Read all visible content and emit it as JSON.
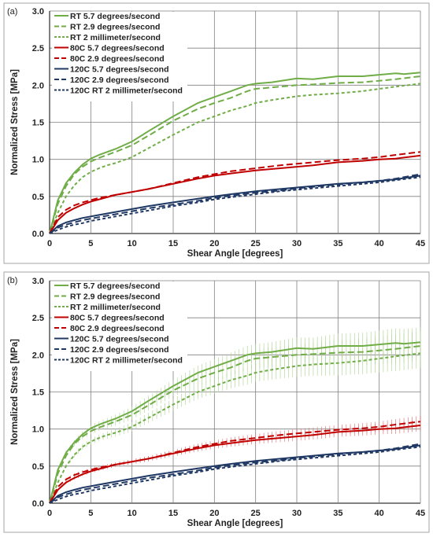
{
  "chart_data": [
    {
      "type": "line",
      "panel_label": "(a)",
      "xlabel": "Shear Angle [degrees]",
      "ylabel": "Normalized Stress [MPa]",
      "xlim": [
        0,
        45
      ],
      "ylim": [
        0,
        3.0
      ],
      "x_ticks": [
        "0",
        "5",
        "10",
        "15",
        "20",
        "25",
        "30",
        "35",
        "40",
        "45"
      ],
      "y_ticks": [
        "0.0",
        "0.5",
        "1.0",
        "1.5",
        "2.0",
        "2.5",
        "3.0"
      ],
      "grid": true,
      "legend_position": "top-left",
      "series": [
        {
          "name": "RT 5.7 degrees/second",
          "color": "#70ad47",
          "dash": "solid",
          "x": [
            0,
            1,
            2,
            3,
            4,
            5,
            6,
            7,
            8,
            10,
            12,
            15,
            18,
            20,
            22,
            24,
            25,
            27,
            30,
            32,
            35,
            38,
            40,
            42,
            43,
            45
          ],
          "y": [
            0.0,
            0.45,
            0.68,
            0.82,
            0.93,
            1.01,
            1.06,
            1.1,
            1.14,
            1.24,
            1.38,
            1.58,
            1.76,
            1.84,
            1.92,
            2.0,
            2.02,
            2.04,
            2.09,
            2.08,
            2.12,
            2.12,
            2.14,
            2.16,
            2.15,
            2.17
          ]
        },
        {
          "name": "RT 2.9 degrees/second",
          "color": "#70ad47",
          "dash": "dash",
          "x": [
            0,
            1,
            2,
            3,
            4,
            5,
            6,
            7,
            8,
            10,
            12,
            15,
            18,
            20,
            22,
            24,
            25,
            27,
            30,
            32,
            35,
            38,
            40,
            42,
            45
          ],
          "y": [
            0.0,
            0.4,
            0.64,
            0.8,
            0.9,
            0.97,
            1.02,
            1.06,
            1.1,
            1.19,
            1.32,
            1.52,
            1.68,
            1.76,
            1.83,
            1.92,
            1.95,
            1.97,
            2.0,
            2.01,
            2.03,
            2.04,
            2.06,
            2.08,
            2.12
          ]
        },
        {
          "name": "RT 2 millimeter/second",
          "color": "#70ad47",
          "dash": "shortdash",
          "x": [
            0,
            1,
            2,
            3,
            4,
            5,
            6,
            7,
            8,
            10,
            12,
            15,
            18,
            20,
            22,
            24,
            25,
            27,
            30,
            32,
            35,
            38,
            40,
            42,
            45
          ],
          "y": [
            0.0,
            0.28,
            0.5,
            0.65,
            0.76,
            0.83,
            0.88,
            0.92,
            0.95,
            1.03,
            1.15,
            1.33,
            1.5,
            1.58,
            1.66,
            1.72,
            1.76,
            1.8,
            1.85,
            1.87,
            1.89,
            1.92,
            1.95,
            1.98,
            2.02
          ]
        },
        {
          "name": "80C 5.7 degrees/second",
          "color": "#c00000",
          "dash": "solid",
          "x": [
            0,
            1,
            2,
            3,
            4,
            5,
            6,
            7,
            8,
            10,
            12,
            15,
            18,
            20,
            22,
            25,
            28,
            30,
            32,
            35,
            38,
            40,
            42,
            45
          ],
          "y": [
            0.0,
            0.18,
            0.28,
            0.34,
            0.39,
            0.43,
            0.46,
            0.49,
            0.52,
            0.56,
            0.6,
            0.67,
            0.74,
            0.78,
            0.81,
            0.85,
            0.88,
            0.9,
            0.92,
            0.96,
            0.98,
            1.0,
            1.01,
            1.05
          ]
        },
        {
          "name": "80C 2.9 degrees/second",
          "color": "#c00000",
          "dash": "dash",
          "x": [
            0,
            1,
            2,
            3,
            4,
            5,
            6,
            7,
            8,
            10,
            12,
            15,
            18,
            20,
            22,
            25,
            28,
            30,
            32,
            35,
            38,
            40,
            42,
            45
          ],
          "y": [
            0.0,
            0.22,
            0.32,
            0.38,
            0.42,
            0.45,
            0.48,
            0.5,
            0.52,
            0.56,
            0.6,
            0.68,
            0.76,
            0.8,
            0.84,
            0.88,
            0.92,
            0.94,
            0.96,
            0.99,
            1.01,
            1.03,
            1.06,
            1.1
          ]
        },
        {
          "name": "120C 5.7 degrees/second",
          "color": "#1f3864",
          "dash": "solid",
          "x": [
            0,
            1,
            2,
            3,
            4,
            5,
            6,
            8,
            10,
            12,
            15,
            18,
            20,
            22,
            25,
            28,
            30,
            32,
            35,
            38,
            40,
            42,
            45
          ],
          "y": [
            0.0,
            0.1,
            0.15,
            0.18,
            0.21,
            0.23,
            0.25,
            0.29,
            0.33,
            0.37,
            0.42,
            0.47,
            0.5,
            0.53,
            0.57,
            0.6,
            0.62,
            0.64,
            0.67,
            0.69,
            0.71,
            0.73,
            0.78
          ]
        },
        {
          "name": "120C 2.9 degrees/second",
          "color": "#1f3864",
          "dash": "dash",
          "x": [
            0,
            1,
            2,
            3,
            4,
            5,
            6,
            8,
            10,
            12,
            15,
            18,
            20,
            22,
            25,
            28,
            30,
            32,
            35,
            38,
            40,
            42,
            45
          ],
          "y": [
            0.0,
            0.08,
            0.12,
            0.15,
            0.18,
            0.2,
            0.22,
            0.26,
            0.3,
            0.34,
            0.39,
            0.44,
            0.48,
            0.51,
            0.55,
            0.58,
            0.61,
            0.63,
            0.66,
            0.69,
            0.71,
            0.74,
            0.8
          ]
        },
        {
          "name": "120C RT 2 millimeter/second",
          "color": "#1f3864",
          "dash": "shortdash",
          "x": [
            0,
            1,
            2,
            3,
            4,
            5,
            6,
            8,
            10,
            12,
            15,
            18,
            20,
            22,
            25,
            28,
            30,
            32,
            35,
            38,
            40,
            42,
            45
          ],
          "y": [
            0.0,
            0.05,
            0.09,
            0.12,
            0.14,
            0.17,
            0.19,
            0.23,
            0.27,
            0.31,
            0.37,
            0.42,
            0.46,
            0.49,
            0.53,
            0.57,
            0.59,
            0.61,
            0.64,
            0.67,
            0.69,
            0.72,
            0.76
          ]
        }
      ]
    },
    {
      "type": "line",
      "panel_label": "(b)",
      "xlabel": "Shear Angle [degrees]",
      "ylabel": "Normalized Stress [MPa]",
      "xlim": [
        0,
        45
      ],
      "ylim": [
        0,
        3.0
      ],
      "x_ticks": [
        "0",
        "5",
        "10",
        "15",
        "20",
        "25",
        "30",
        "35",
        "40",
        "45"
      ],
      "y_ticks": [
        "0.0",
        "0.5",
        "1.0",
        "1.5",
        "2.0",
        "2.5",
        "3.0"
      ],
      "grid": true,
      "error_bars": true,
      "legend_position": "top-left",
      "series": [
        {
          "name": "RT 5.7 degrees/second",
          "color": "#70ad47",
          "dash": "solid",
          "x": [
            0,
            1,
            2,
            3,
            4,
            5,
            6,
            7,
            8,
            10,
            12,
            15,
            18,
            20,
            22,
            24,
            25,
            27,
            30,
            32,
            35,
            38,
            40,
            42,
            43,
            45
          ],
          "y": [
            0.0,
            0.45,
            0.68,
            0.82,
            0.93,
            1.01,
            1.06,
            1.1,
            1.14,
            1.24,
            1.38,
            1.58,
            1.76,
            1.84,
            1.92,
            2.0,
            2.02,
            2.04,
            2.09,
            2.08,
            2.12,
            2.12,
            2.14,
            2.16,
            2.15,
            2.17
          ]
        },
        {
          "name": "RT 2.9 degrees/second",
          "color": "#70ad47",
          "dash": "dash",
          "x": [
            0,
            1,
            2,
            3,
            4,
            5,
            6,
            7,
            8,
            10,
            12,
            15,
            18,
            20,
            22,
            24,
            25,
            27,
            30,
            32,
            35,
            38,
            40,
            42,
            45
          ],
          "y": [
            0.0,
            0.4,
            0.64,
            0.8,
            0.9,
            0.97,
            1.02,
            1.06,
            1.1,
            1.19,
            1.32,
            1.52,
            1.68,
            1.76,
            1.83,
            1.92,
            1.95,
            1.97,
            2.0,
            2.01,
            2.03,
            2.04,
            2.06,
            2.08,
            2.12
          ]
        },
        {
          "name": "RT 2 millimeter/second",
          "color": "#70ad47",
          "dash": "shortdash",
          "x": [
            0,
            1,
            2,
            3,
            4,
            5,
            6,
            7,
            8,
            10,
            12,
            15,
            18,
            20,
            22,
            24,
            25,
            27,
            30,
            32,
            35,
            38,
            40,
            42,
            45
          ],
          "y": [
            0.0,
            0.28,
            0.5,
            0.65,
            0.76,
            0.83,
            0.88,
            0.92,
            0.95,
            1.03,
            1.15,
            1.33,
            1.5,
            1.58,
            1.66,
            1.72,
            1.76,
            1.8,
            1.85,
            1.87,
            1.89,
            1.92,
            1.95,
            1.98,
            2.02
          ]
        },
        {
          "name": "80C 5.7 degrees/second",
          "color": "#c00000",
          "dash": "solid",
          "x": [
            0,
            1,
            2,
            3,
            4,
            5,
            6,
            7,
            8,
            10,
            12,
            15,
            18,
            20,
            22,
            25,
            28,
            30,
            32,
            35,
            38,
            40,
            42,
            45
          ],
          "y": [
            0.0,
            0.18,
            0.28,
            0.34,
            0.39,
            0.43,
            0.46,
            0.49,
            0.52,
            0.56,
            0.6,
            0.67,
            0.74,
            0.78,
            0.81,
            0.85,
            0.88,
            0.9,
            0.92,
            0.96,
            0.98,
            1.0,
            1.01,
            1.05
          ]
        },
        {
          "name": "80C 2.9 degrees/second",
          "color": "#c00000",
          "dash": "dash",
          "x": [
            0,
            1,
            2,
            3,
            4,
            5,
            6,
            7,
            8,
            10,
            12,
            15,
            18,
            20,
            22,
            25,
            28,
            30,
            32,
            35,
            38,
            40,
            42,
            45
          ],
          "y": [
            0.0,
            0.22,
            0.32,
            0.38,
            0.42,
            0.45,
            0.48,
            0.5,
            0.52,
            0.56,
            0.6,
            0.68,
            0.76,
            0.8,
            0.84,
            0.88,
            0.92,
            0.94,
            0.96,
            0.99,
            1.01,
            1.03,
            1.06,
            1.1
          ]
        },
        {
          "name": "120C 5.7 degrees/second",
          "color": "#1f3864",
          "dash": "solid",
          "x": [
            0,
            1,
            2,
            3,
            4,
            5,
            6,
            8,
            10,
            12,
            15,
            18,
            20,
            22,
            25,
            28,
            30,
            32,
            35,
            38,
            40,
            42,
            45
          ],
          "y": [
            0.0,
            0.1,
            0.15,
            0.18,
            0.21,
            0.23,
            0.25,
            0.29,
            0.33,
            0.37,
            0.42,
            0.47,
            0.5,
            0.53,
            0.57,
            0.6,
            0.62,
            0.64,
            0.67,
            0.69,
            0.71,
            0.73,
            0.78
          ]
        },
        {
          "name": "120C 2.9 degrees/second",
          "color": "#1f3864",
          "dash": "dash",
          "x": [
            0,
            1,
            2,
            3,
            4,
            5,
            6,
            8,
            10,
            12,
            15,
            18,
            20,
            22,
            25,
            28,
            30,
            32,
            35,
            38,
            40,
            42,
            45
          ],
          "y": [
            0.0,
            0.08,
            0.12,
            0.15,
            0.18,
            0.2,
            0.22,
            0.26,
            0.3,
            0.34,
            0.39,
            0.44,
            0.48,
            0.51,
            0.55,
            0.58,
            0.61,
            0.63,
            0.66,
            0.69,
            0.71,
            0.74,
            0.8
          ]
        },
        {
          "name": "120C RT 2 millimeter/second",
          "color": "#1f3864",
          "dash": "shortdash",
          "x": [
            0,
            1,
            2,
            3,
            4,
            5,
            6,
            8,
            10,
            12,
            15,
            18,
            20,
            22,
            25,
            28,
            30,
            32,
            35,
            38,
            40,
            42,
            45
          ],
          "y": [
            0.0,
            0.05,
            0.09,
            0.12,
            0.14,
            0.17,
            0.19,
            0.23,
            0.27,
            0.31,
            0.37,
            0.42,
            0.46,
            0.49,
            0.53,
            0.57,
            0.59,
            0.61,
            0.64,
            0.67,
            0.69,
            0.72,
            0.76
          ]
        }
      ]
    }
  ]
}
